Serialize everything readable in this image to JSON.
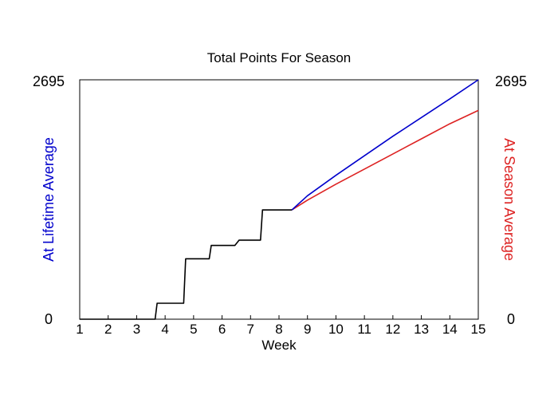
{
  "chart_data": {
    "type": "line",
    "title": "Total Points For Season",
    "xlabel": "Week",
    "ylabel_left": "At Lifetime Average",
    "ylabel_right": "At Season Average",
    "xlim": [
      1,
      15
    ],
    "ylim": [
      0,
      2695
    ],
    "x_ticks": [
      "1",
      "2",
      "3",
      "4",
      "5",
      "6",
      "7",
      "8",
      "9",
      "10",
      "11",
      "12",
      "13",
      "14",
      "15"
    ],
    "y_ticks_left": [
      "0",
      "2695"
    ],
    "y_ticks_right": [
      "0",
      "2695"
    ],
    "colors": {
      "actual": "#000000",
      "lifetime": "#0000cc",
      "season": "#dd2222",
      "lifetime_label": "#0000cc",
      "season_label": "#dd2222"
    },
    "series": [
      {
        "key": "actual",
        "x": [
          1,
          3.65,
          3.72,
          4.65,
          4.72,
          5.55,
          5.62,
          6.45,
          6.6,
          7.35,
          7.42,
          8.45
        ],
        "y": [
          0,
          0,
          180,
          180,
          680,
          680,
          830,
          830,
          890,
          890,
          1230,
          1230
        ]
      },
      {
        "key": "lifetime",
        "x": [
          8.45,
          9,
          10,
          11,
          12,
          13,
          14,
          15
        ],
        "y": [
          1230,
          1390,
          1620,
          1840,
          2060,
          2270,
          2480,
          2695
        ]
      },
      {
        "key": "season",
        "x": [
          8.45,
          9,
          10,
          11,
          12,
          13,
          14,
          15
        ],
        "y": [
          1230,
          1340,
          1520,
          1690,
          1860,
          2030,
          2200,
          2350
        ]
      }
    ]
  }
}
